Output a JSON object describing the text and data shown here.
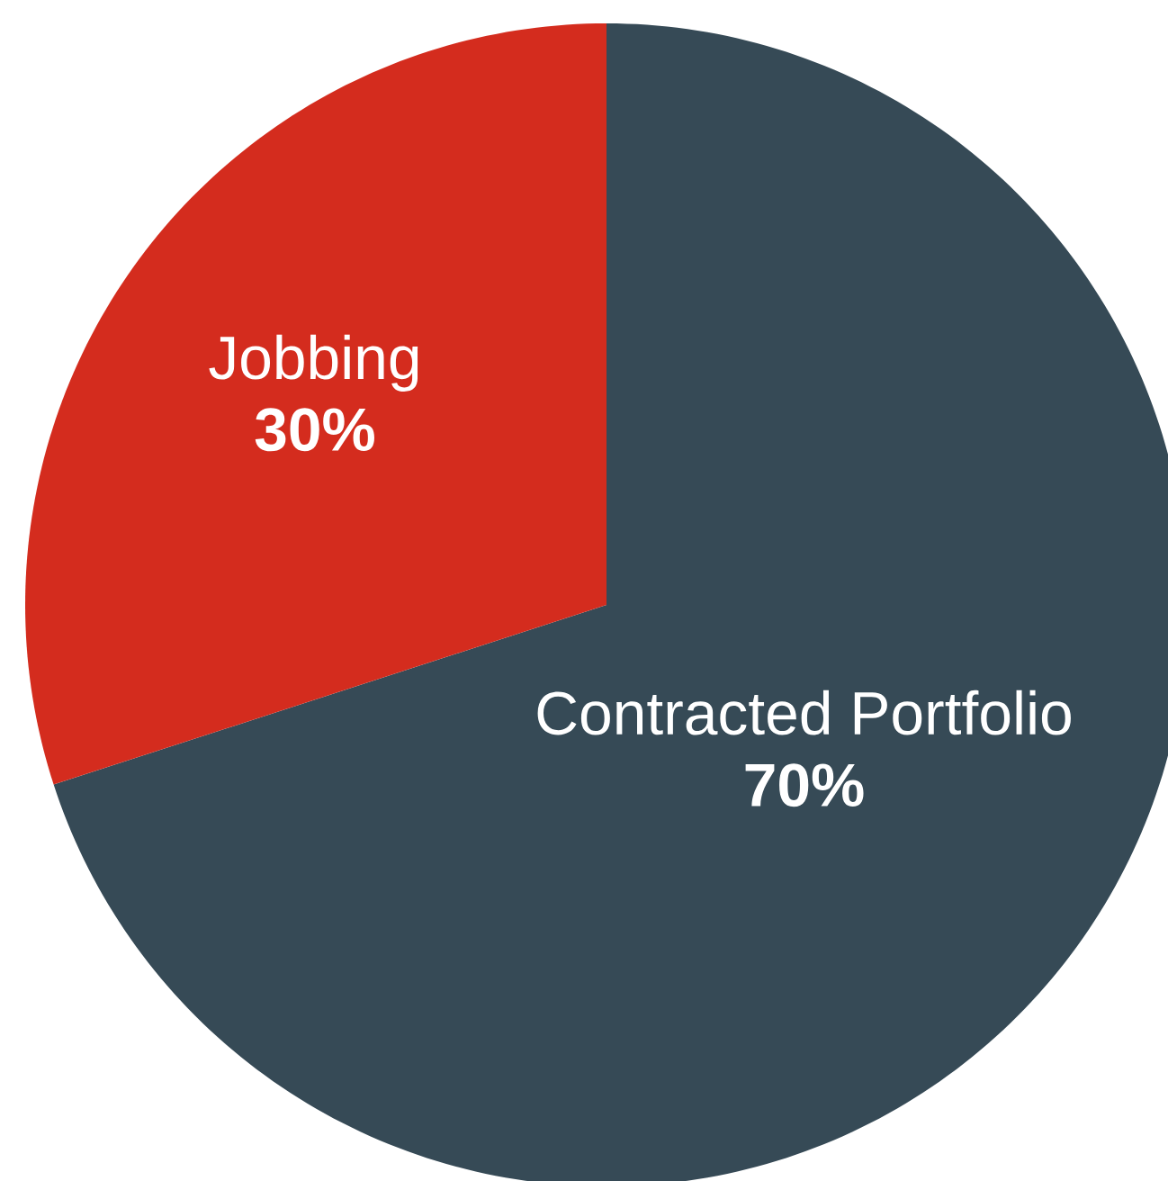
{
  "chart_data": {
    "type": "pie",
    "categories": [
      "Contracted Portfolio",
      "Jobbing"
    ],
    "values": [
      70,
      30
    ],
    "value_labels": [
      "70%",
      "30%"
    ],
    "colors": [
      "#364a56",
      "#d42c1e"
    ]
  }
}
